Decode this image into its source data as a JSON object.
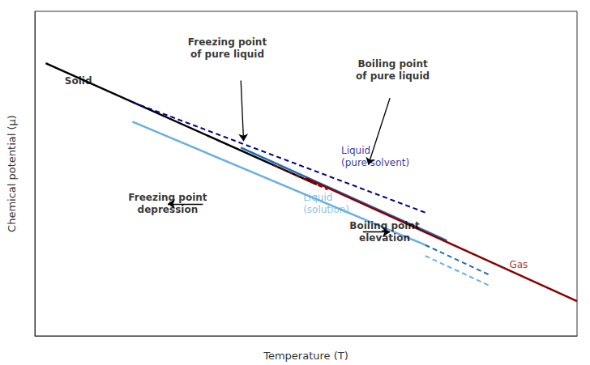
{
  "chart_data": {
    "type": "line",
    "xlabel": "Temperature (T)",
    "ylabel": "Chemical potential (μ)",
    "xlim": [
      0,
      1
    ],
    "ylim": [
      0.25,
      1.0
    ],
    "xticks": [],
    "yticks": [],
    "tick_labels": false,
    "grid": false,
    "series": [
      {
        "color": "#000000",
        "line_style": "solid",
        "x": [
          0.02,
          0.52
        ],
        "values": [
          0.88,
          0.6
        ]
      },
      {
        "color": "#00008b",
        "line_style": "dashed",
        "x": [
          0.18,
          0.72
        ],
        "values": [
          0.79,
          0.535
        ]
      },
      {
        "color": "#1e6ab5",
        "line_style": "solid",
        "x": [
          0.38,
          0.76
        ],
        "values": [
          0.685,
          0.47
        ]
      },
      {
        "color": "#6ab0e0",
        "line_style": "solid",
        "x": [
          0.18,
          0.72
        ],
        "values": [
          0.745,
          0.46
        ]
      },
      {
        "color": "#1e6ab5",
        "line_style": "dashed",
        "x": [
          0.72,
          0.84
        ],
        "values": [
          0.46,
          0.39
        ]
      },
      {
        "color": "#6ab0e0",
        "line_style": "dashed",
        "x": [
          0.72,
          0.84
        ],
        "values": [
          0.435,
          0.365
        ]
      },
      {
        "color": "#8b0000",
        "line_style": "dashed",
        "x": [
          0.44,
          0.54
        ],
        "values": [
          0.645,
          0.588
        ]
      },
      {
        "color": "#8b0000",
        "line_style": "solid",
        "x": [
          0.5,
          1.0
        ],
        "values": [
          0.615,
          0.33
        ]
      }
    ],
    "annotations": [
      {
        "text": "Solid",
        "x": 0.055,
        "y": 0.84,
        "color": "#000000",
        "align": "left",
        "bold": true
      },
      {
        "text": "Liquid\n(pure solvent)",
        "x": 0.565,
        "y": 0.665,
        "color": "#00008b",
        "align": "left",
        "bold": false
      },
      {
        "text": "Liquid\n(solution)",
        "x": 0.495,
        "y": 0.555,
        "color": "#6ab0e0",
        "align": "left",
        "bold": false
      },
      {
        "text": "Gas",
        "x": 0.875,
        "y": 0.415,
        "color": "#8b0000",
        "align": "left",
        "bold": false
      },
      {
        "text": "Freezing point\nof pure liquid",
        "x": 0.355,
        "y": 0.915,
        "color": "#000000",
        "align": "center",
        "bold": true
      },
      {
        "text": "Boiling point\nof pure liquid",
        "x": 0.66,
        "y": 0.865,
        "color": "#000000",
        "align": "center",
        "bold": true
      },
      {
        "text": "Freezing point\ndepression",
        "x": 0.245,
        "y": 0.555,
        "color": "#000000",
        "align": "center",
        "bold": true
      },
      {
        "text": "Boiling point\nelevation",
        "x": 0.645,
        "y": 0.49,
        "color": "#000000",
        "align": "center",
        "bold": true
      }
    ],
    "arrows": [
      {
        "x": [
          0.38,
          0.385
        ],
        "y": [
          0.84,
          0.7
        ]
      },
      {
        "x": [
          0.655,
          0.615
        ],
        "y": [
          0.8,
          0.645
        ]
      },
      {
        "x": [
          0.31,
          0.245
        ],
        "y": [
          0.555,
          0.555
        ]
      },
      {
        "x": [
          0.605,
          0.655
        ],
        "y": [
          0.49,
          0.49
        ]
      }
    ]
  }
}
